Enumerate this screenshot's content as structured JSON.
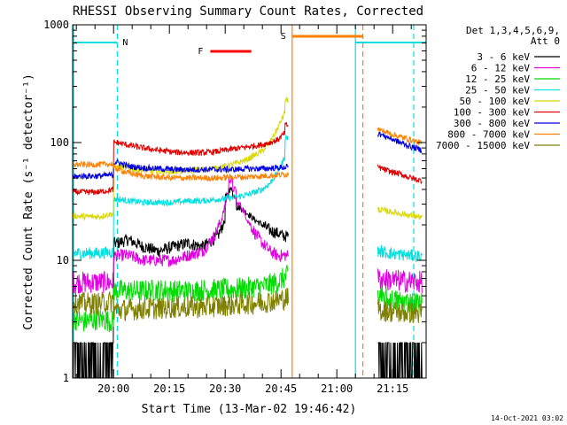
{
  "chart_data": {
    "type": "line",
    "title": "RHESSI Observing Summary Count Rates, Corrected",
    "xlabel": "Start Time (13-Mar-02 19:46:42)",
    "ylabel": "Corrected Count Rate (s⁻¹ detector⁻¹)",
    "y_scale": "log",
    "ylim": [
      1,
      1000
    ],
    "xlim_minutes": [
      -11,
      84
    ],
    "y_ticks": [
      {
        "value": 1,
        "label": "1"
      },
      {
        "value": 10,
        "label": "10"
      },
      {
        "value": 100,
        "label": "100"
      },
      {
        "value": 1000,
        "label": "1000"
      }
    ],
    "x_ticks": [
      {
        "value": 0,
        "label": "20:00"
      },
      {
        "value": 15,
        "label": "20:15"
      },
      {
        "value": 30,
        "label": "20:30"
      },
      {
        "value": 45,
        "label": "20:45"
      },
      {
        "value": 60,
        "label": "21:00"
      },
      {
        "value": 75,
        "label": "21:15"
      }
    ],
    "legend_header": [
      "Det 1,3,4,5,6,9,",
      "Att 0"
    ],
    "legend_position": "right",
    "series": [
      {
        "name": "3 - 6 keV",
        "color": "#000000",
        "x": [
          -11,
          -10,
          -8,
          -6,
          -4,
          -2,
          0,
          1,
          4,
          8,
          12,
          16,
          20,
          24,
          28,
          30,
          31,
          32,
          33,
          34,
          36,
          38,
          40,
          42,
          44,
          46,
          47
        ],
        "y": [
          1.6,
          1.6,
          1.7,
          1.6,
          1.6,
          1.6,
          1.6,
          14,
          15,
          13,
          12,
          13,
          14,
          13,
          16,
          22,
          35,
          40,
          35,
          28,
          25,
          22,
          20,
          18,
          17,
          16,
          16
        ]
      },
      {
        "name": "6 - 12 keV",
        "color": "#e000e0",
        "x": [
          -11,
          -8,
          -4,
          0,
          1,
          4,
          8,
          12,
          16,
          20,
          24,
          27,
          29,
          31,
          32,
          33,
          34,
          36,
          38,
          40,
          42,
          44,
          46,
          47
        ],
        "y": [
          6.5,
          6.5,
          6.5,
          6.5,
          11,
          11,
          10,
          10,
          10,
          11,
          12,
          16,
          22,
          40,
          48,
          40,
          30,
          22,
          17,
          14,
          12,
          11,
          11,
          11
        ]
      },
      {
        "name": "12 - 25 keV",
        "color": "#00dd00",
        "x": [
          -11,
          -8,
          -4,
          0,
          1,
          4,
          8,
          12,
          16,
          20,
          24,
          28,
          32,
          36,
          40,
          44,
          47
        ],
        "y": [
          3.2,
          3.0,
          3.2,
          3.0,
          5.5,
          5.5,
          5.5,
          5.6,
          5.5,
          5.5,
          5.6,
          5.6,
          5.7,
          5.8,
          6.0,
          6.5,
          7.5
        ]
      },
      {
        "name": "25 - 50 keV",
        "color": "#00e0e0",
        "x": [
          -11,
          -8,
          -4,
          0,
          1,
          4,
          8,
          12,
          16,
          20,
          24,
          28,
          32,
          36,
          40,
          42,
          44,
          46,
          47
        ],
        "y": [
          11.5,
          11.5,
          11.5,
          11.8,
          33,
          32,
          31,
          31,
          31,
          32,
          32,
          33,
          34,
          36,
          40,
          45,
          55,
          75,
          110
        ]
      },
      {
        "name": "50 - 100 keV",
        "color": "#d8d800",
        "x": [
          -11,
          -8,
          -4,
          0,
          1,
          4,
          8,
          12,
          16,
          20,
          24,
          28,
          32,
          36,
          40,
          42,
          44,
          46,
          47
        ],
        "y": [
          24,
          23.5,
          23.5,
          25,
          62,
          60,
          58,
          57,
          57,
          58,
          59,
          61,
          65,
          72,
          85,
          100,
          130,
          180,
          230
        ]
      },
      {
        "name": "100 - 300 keV",
        "color": "#e00000",
        "x": [
          -11,
          -8,
          -4,
          0,
          1,
          4,
          8,
          12,
          16,
          20,
          24,
          28,
          32,
          36,
          40,
          42,
          44,
          46,
          47
        ],
        "y": [
          38,
          38,
          38,
          40,
          100,
          95,
          90,
          86,
          83,
          82,
          82,
          84,
          88,
          92,
          96,
          100,
          105,
          120,
          140
        ]
      },
      {
        "name": "300 - 800 keV",
        "color": "#0000e0",
        "x": [
          -11,
          -8,
          -4,
          0,
          1,
          4,
          8,
          12,
          16,
          20,
          24,
          28,
          32,
          36,
          40,
          44,
          47
        ],
        "y": [
          51,
          52,
          52,
          53,
          68,
          63,
          61,
          60,
          59,
          59,
          59,
          59,
          59,
          60,
          60,
          61,
          62
        ]
      },
      {
        "name": "800 - 7000 keV",
        "color": "#ff8000",
        "x": [
          -11,
          -8,
          -4,
          0,
          1,
          4,
          8,
          12,
          16,
          20,
          24,
          28,
          32,
          36,
          40,
          44,
          47
        ],
        "y": [
          65,
          65,
          65,
          66,
          60,
          55,
          52,
          51,
          50,
          50,
          50,
          50,
          51,
          51,
          52,
          53,
          54
        ]
      },
      {
        "name": "7000 - 15000 keV",
        "color": "#808000",
        "x": [
          -11,
          -8,
          -4,
          0,
          1,
          4,
          8,
          12,
          16,
          20,
          24,
          28,
          32,
          36,
          40,
          44,
          47
        ],
        "y": [
          4.5,
          4.3,
          4.3,
          4.5,
          3.8,
          3.8,
          3.9,
          3.9,
          4.0,
          4.0,
          4.0,
          4.1,
          4.2,
          4.3,
          4.4,
          4.6,
          4.8
        ]
      }
    ],
    "after_gap": {
      "x": [
        71,
        74,
        77,
        80,
        83
      ],
      "values": {
        "100 - 300 keV": [
          62,
          57,
          54,
          50,
          47
        ],
        "300 - 800 keV": [
          120,
          110,
          100,
          92,
          86
        ],
        "800 - 7000 keV": [
          130,
          120,
          112,
          105,
          98
        ],
        "50 - 100 keV": [
          27,
          26,
          25,
          24,
          23
        ],
        "25 - 50 keV": [
          12,
          11.5,
          11.2,
          11,
          10.8
        ],
        "6 - 12 keV": [
          7,
          6.8,
          6.7,
          6.6,
          6.5
        ],
        "12 - 25 keV": [
          4.8,
          4.6,
          4.5,
          4.4,
          4.3
        ],
        "7000 - 15000 keV": [
          3.8,
          3.7,
          3.6,
          3.6,
          3.5
        ],
        "3 - 6 keV": [
          1.6,
          1.6,
          1.6,
          1.6,
          1.6
        ]
      }
    },
    "annotations": [
      {
        "label": "N",
        "color": "#00e0e0",
        "x_start": -11,
        "x_end": 1,
        "x_end_2": 65,
        "x_end_3": 84
      },
      {
        "label": "F",
        "color": "#ff0000",
        "x_start": 26,
        "x_end": 37
      },
      {
        "label": "S",
        "color": "#ff8000",
        "x_start": 48,
        "x_end": 67
      }
    ],
    "footer_date": "14-Oct-2021 03:02"
  }
}
